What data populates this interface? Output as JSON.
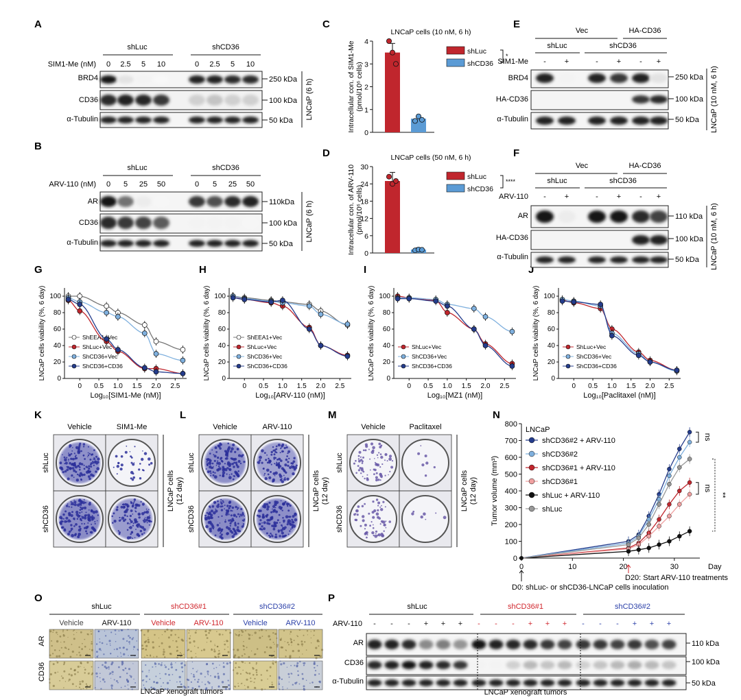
{
  "panel_letters": [
    "A",
    "B",
    "C",
    "D",
    "E",
    "F",
    "G",
    "H",
    "I",
    "J",
    "K",
    "L",
    "M",
    "N",
    "O",
    "P"
  ],
  "kda": {
    "k250": "250 kDa",
    "k110a": "110kDa",
    "k110b": "110 kDa",
    "k100": "100 kDa",
    "k50": "50 kDa"
  },
  "blot_labels": {
    "brd4": "BRD4",
    "cd36": "CD36",
    "tub": "α-Tubulin",
    "ar": "AR",
    "ha": "HA-CD36"
  },
  "groups": {
    "shluc": "shLuc",
    "shcd36": "shCD36",
    "vec": "Vec",
    "hacd36": "HA-CD36",
    "shcd36_1": "shCD36#1",
    "shcd36_2": "shCD36#2"
  },
  "panel_A": {
    "row_label": "SIM1-Me (nM)",
    "doses": [
      "0",
      "2.5",
      "5",
      "10",
      "0",
      "2.5",
      "5",
      "10"
    ],
    "side": "LNCaP (6 h)"
  },
  "panel_B": {
    "row_label": "ARV-110 (nM)",
    "doses": [
      "0",
      "5",
      "25",
      "50",
      "0",
      "5",
      "25",
      "50"
    ],
    "side": "LNCaP (6 h)"
  },
  "panel_E": {
    "treat": "SIM1-Me",
    "signs": [
      "-",
      "+",
      "-",
      "+",
      "-",
      "+"
    ],
    "side": "LNCaP (10 nM, 6 h)"
  },
  "panel_F": {
    "treat": "ARV-110",
    "signs": [
      "-",
      "+",
      "-",
      "+",
      "-",
      "+"
    ],
    "side": "LNCaP (10 nM, 6 h)"
  },
  "panel_C": {
    "title": "LNCaP cells (10 nM, 6 h)",
    "ylabel": "Intracellular con. of SIM1-Me",
    "yunit": "(pmol/10⁶ cells)",
    "sig": "*",
    "chart_data": {
      "type": "bar",
      "categories": [
        "shLuc",
        "shCD36"
      ],
      "values": [
        3.5,
        0.6
      ],
      "ylim": [
        0,
        4
      ],
      "yticks": [
        "0",
        "1",
        "2",
        "3",
        "4"
      ],
      "points": [
        [
          4.0,
          3.5,
          3.0
        ],
        [
          0.5,
          0.7,
          0.55
        ]
      ],
      "colors": [
        "#c0262d",
        "#5b9bd5"
      ]
    }
  },
  "panel_D": {
    "title": "LNCaP cells (50 nM, 6 h)",
    "ylabel": "Intracellular con. of ARV-110",
    "yunit": "(pmol/10⁶ cells)",
    "sig": "****",
    "chart_data": {
      "type": "bar",
      "categories": [
        "shLuc",
        "shCD36"
      ],
      "values": [
        25,
        1.2
      ],
      "ylim": [
        0,
        30
      ],
      "yticks": [
        "0",
        "6",
        "12",
        "18",
        "24",
        "30"
      ],
      "points": [
        [
          26.5,
          24.0,
          25.0
        ],
        [
          0.9,
          1.2,
          1.1
        ]
      ],
      "colors": [
        "#c0262d",
        "#5b9bd5"
      ]
    }
  },
  "curves": {
    "ylabel": "LNCaP cells viability (%, 6 day)",
    "yticks": [
      "0",
      "20",
      "40",
      "60",
      "80",
      "100"
    ],
    "xticks": [
      "0",
      "0.5",
      "1.0",
      "1.5",
      "2.0",
      "2.5"
    ],
    "series_colors": [
      "#777777",
      "#c0262d",
      "#7fb0de",
      "#243c8c"
    ],
    "series_fill": [
      "#ffffff",
      "#c0262d",
      "#7fb0de",
      "#243c8c"
    ],
    "chart_data": [
      {
        "type": "scatter",
        "xlabel": "Log₁₀[SIM1-Me (nM)]",
        "x": [
          -0.3,
          0,
          0.7,
          1,
          1.7,
          2,
          2.7
        ],
        "series": [
          {
            "name": "ShEEA1+Vec",
            "values": [
              100,
              100,
              88,
              80,
              65,
              45,
              35
            ]
          },
          {
            "name": "ShLuc+Vec",
            "values": [
              95,
              82,
              45,
              33,
              12,
              12,
              6
            ]
          },
          {
            "name": "ShCD36+Vec",
            "values": [
              98,
              93,
              80,
              75,
              55,
              30,
              22
            ]
          },
          {
            "name": "ShCD36+CD36",
            "values": [
              96,
              90,
              48,
              35,
              13,
              8,
              6
            ]
          }
        ],
        "ylim": [
          0,
          110
        ]
      },
      {
        "type": "scatter",
        "xlabel": "Log₁₀[ARV-110 (nM)]",
        "x": [
          -0.3,
          0,
          0.7,
          1,
          1.7,
          2,
          2.7
        ],
        "series": [
          {
            "name": "ShEEA1+Vec",
            "values": [
              100,
              98,
              95,
              93,
              90,
              82,
              65
            ]
          },
          {
            "name": "ShLuc+Vec",
            "values": [
              100,
              96,
              92,
              88,
              62,
              40,
              28
            ]
          },
          {
            "name": "ShCD36+Vec",
            "values": [
              100,
              97,
              94,
              92,
              88,
              78,
              66
            ]
          },
          {
            "name": "ShCD36+CD36",
            "values": [
              98,
              96,
              93,
              95,
              60,
              40,
              27
            ]
          }
        ],
        "ylim": [
          0,
          110
        ]
      },
      {
        "type": "scatter",
        "xlabel": "Log₁₀[MZ1 (nM)]",
        "x": [
          -0.3,
          0,
          0.7,
          1,
          1.7,
          2,
          2.7
        ],
        "series": [
          {
            "name": "ShLuc+Vec",
            "values": [
              100,
              98,
              95,
              80,
              60,
              42,
              18
            ]
          },
          {
            "name": "ShCD36+Vec",
            "values": [
              98,
              98,
              96,
              90,
              85,
              75,
              57
            ]
          },
          {
            "name": "ShCD36+CD36",
            "values": [
              97,
              97,
              94,
              88,
              60,
              40,
              15
            ]
          }
        ],
        "ylim": [
          0,
          110
        ]
      },
      {
        "type": "scatter",
        "xlabel": "Log₁₀[Paclitaxel (nM)]",
        "x": [
          -0.3,
          0,
          0.7,
          1,
          1.7,
          2,
          2.7
        ],
        "series": [
          {
            "name": "ShLuc+Vec",
            "values": [
              95,
              92,
              85,
              60,
              32,
              22,
              10
            ]
          },
          {
            "name": "ShCD36+Vec",
            "values": [
              96,
              94,
              88,
              55,
              30,
              20,
              9
            ]
          },
          {
            "name": "ShCD36+CD36",
            "values": [
              94,
              93,
              90,
              52,
              28,
              20,
              10
            ]
          }
        ],
        "ylim": [
          0,
          110
        ]
      }
    ]
  },
  "panel_K": {
    "cols": [
      "Vehicle",
      "SIM1-Me"
    ],
    "rows": [
      "shLuc",
      "shCD36"
    ],
    "side1": "LNCaP cells",
    "side2": "(12 day)"
  },
  "panel_L": {
    "cols": [
      "Vehicle",
      "ARV-110"
    ],
    "rows": [
      "shLuc",
      "shCD36"
    ],
    "side1": "LNCaP cells",
    "side2": "(12 day)"
  },
  "panel_M": {
    "cols": [
      "Vehicle",
      "Paclitaxel"
    ],
    "rows": [
      "shLuc",
      "shCD36"
    ],
    "side1": "LNCaP cells",
    "side2": "(12 day)"
  },
  "panel_N": {
    "ylabel": "Tumor volume (mm³)",
    "xlabel": "Day",
    "cell": "LNCaP",
    "ns": "ns",
    "sig": "**",
    "note_d20": "D20: Start ARV-110 treatments",
    "note_d0": "D0: shLuc- or shCD36-LNCaP cells inoculation",
    "yticks": [
      "0",
      "100",
      "200",
      "300",
      "400",
      "500",
      "600",
      "700",
      "800"
    ],
    "xticks": [
      "0",
      "10",
      "20",
      "30"
    ],
    "chart_data": {
      "type": "line",
      "x": [
        0,
        21,
        23,
        25,
        27,
        29,
        31,
        33
      ],
      "ylim": [
        0,
        800
      ],
      "xlim": [
        0,
        35
      ],
      "series": [
        {
          "name": "shCD36#2 + ARV-110",
          "color": "#243c8c",
          "values": [
            0,
            100,
            140,
            250,
            380,
            530,
            650,
            750
          ]
        },
        {
          "name": "shCD36#2",
          "color": "#7fb0de",
          "values": [
            0,
            90,
            130,
            230,
            350,
            490,
            600,
            690
          ]
        },
        {
          "name": "shCD36#1 + ARV-110",
          "color": "#c0262d",
          "values": [
            0,
            60,
            90,
            150,
            230,
            320,
            400,
            450
          ]
        },
        {
          "name": "shCD36#1",
          "color": "#f0a0a0",
          "values": [
            0,
            55,
            80,
            130,
            190,
            250,
            320,
            380
          ]
        },
        {
          "name": "shLuc + ARV-110",
          "color": "#111111",
          "values": [
            0,
            40,
            50,
            60,
            80,
            100,
            130,
            160
          ]
        },
        {
          "name": "shLuc",
          "color": "#999999",
          "values": [
            0,
            80,
            120,
            200,
            320,
            440,
            540,
            590
          ]
        }
      ]
    }
  },
  "panel_O": {
    "col_labels": [
      "Vehicle",
      "ARV-110",
      "Vehicle",
      "ARV-110",
      "Vehicle",
      "ARV-110"
    ],
    "row_labels": [
      "AR",
      "CD36"
    ],
    "caption": "LNCaP xenograft tumors"
  },
  "panel_P": {
    "treat": "ARV-110",
    "signs": [
      "-",
      "-",
      "-",
      "+",
      "+",
      "+",
      "-",
      "-",
      "-",
      "+",
      "+",
      "+",
      "-",
      "-",
      "-",
      "+",
      "+",
      "+"
    ],
    "caption": "LNCaP xenograft tumors"
  }
}
